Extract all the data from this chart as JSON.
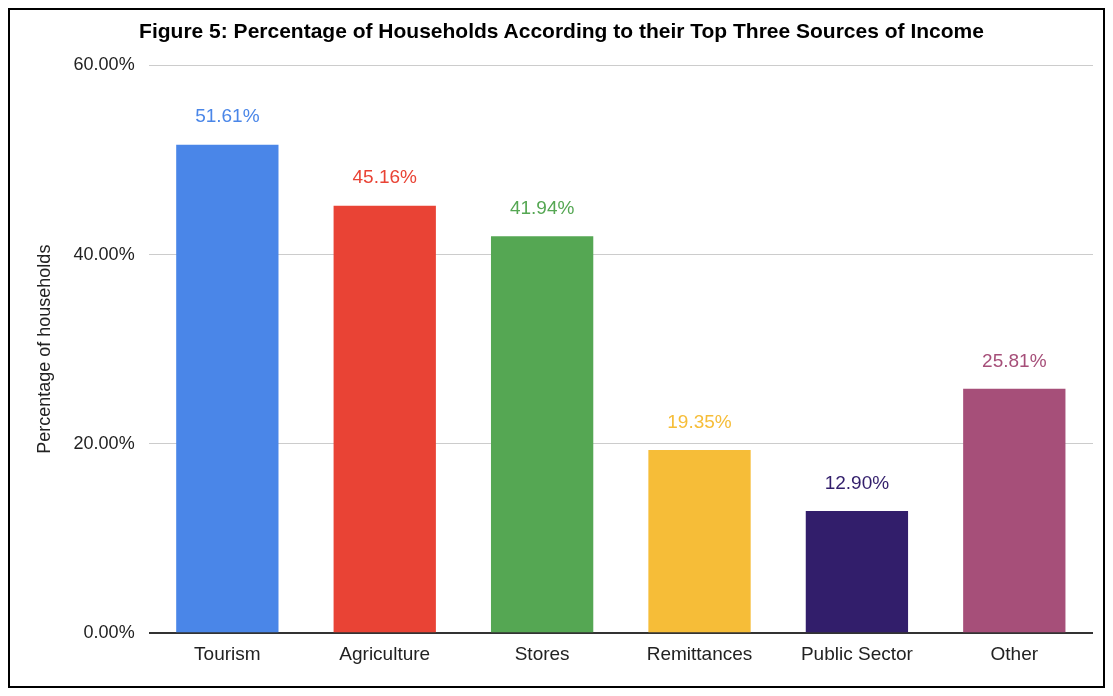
{
  "chart_data": {
    "type": "bar",
    "title": "Figure 5: Percentage of Households According to their Top Three Sources of Income",
    "ylabel": "Percentage of households",
    "categories": [
      "Tourism",
      "Agriculture",
      "Stores",
      "Remittances",
      "Public Sector",
      "Other"
    ],
    "values": [
      51.61,
      45.16,
      41.94,
      19.35,
      12.9,
      25.81
    ],
    "colors": [
      "#4a86e8",
      "#e94335",
      "#55a753",
      "#f6bd38",
      "#321e6b",
      "#a64f79"
    ],
    "value_labels": [
      "51.61%",
      "45.16%",
      "41.94%",
      "19.35%",
      "12.90%",
      "25.81%"
    ],
    "ylim": [
      0,
      60
    ],
    "yticks": [
      {
        "value": 0,
        "label": "0.00%"
      },
      {
        "value": 20,
        "label": "20.00%"
      },
      {
        "value": 40,
        "label": "40.00%"
      },
      {
        "value": 60,
        "label": "60.00%"
      }
    ],
    "grid": "y",
    "legend": false
  }
}
